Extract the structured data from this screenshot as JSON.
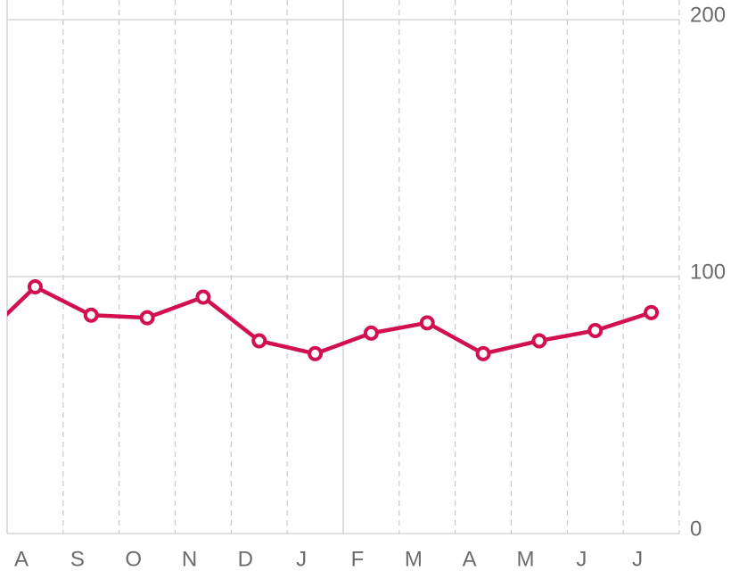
{
  "chart_data": {
    "type": "line",
    "categories": [
      null,
      "A",
      "S",
      "O",
      "N",
      "D",
      "J",
      "F",
      "M",
      "A",
      "M",
      "J",
      "J"
    ],
    "series": [
      {
        "name": null,
        "color": "#d2104e",
        "values": [
          75,
          96,
          85,
          84,
          92,
          75,
          70,
          78,
          82,
          70,
          75,
          79,
          86
        ]
      }
    ],
    "ylim": [
      0,
      200
    ],
    "yticks": [
      0,
      100,
      200
    ],
    "grid": true
  }
}
